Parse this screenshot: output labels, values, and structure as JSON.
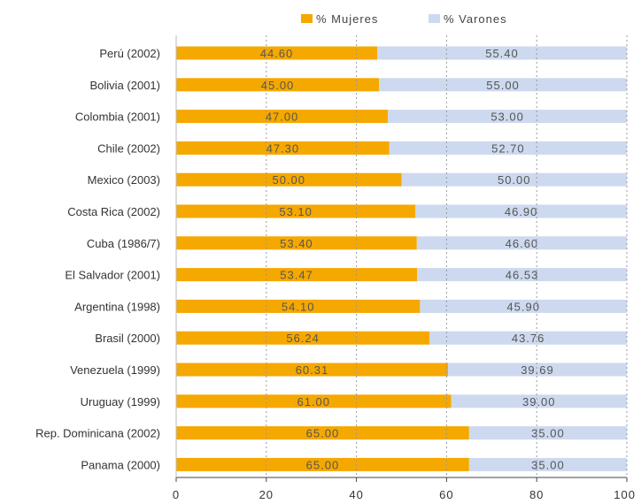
{
  "chart_data": {
    "type": "bar",
    "orientation": "horizontal",
    "stacked": true,
    "categories": [
      "Perú (2002)",
      "Bolivia (2001)",
      "Colombia (2001)",
      "Chile (2002)",
      "Mexico (2003)",
      "Costa Rica (2002)",
      "Cuba (1986/7)",
      "El Salvador (2001)",
      "Argentina (1998)",
      "Brasil (2000)",
      "Venezuela (1999)",
      "Uruguay (1999)",
      "Rep. Dominicana (2002)",
      "Panama (2000)"
    ],
    "series": [
      {
        "name": "% Mujeres",
        "color": "#f5a800",
        "values": [
          44.6,
          45.0,
          47.0,
          47.3,
          50.0,
          53.1,
          53.4,
          53.47,
          54.1,
          56.24,
          60.31,
          61.0,
          65.0,
          65.0
        ],
        "labels": [
          "44.60",
          "45.00",
          "47.00",
          "47.30",
          "50.00",
          "53.10",
          "53.40",
          "53.47",
          "54.10",
          "56.24",
          "60.31",
          "61.00",
          "65.00",
          "65.00"
        ]
      },
      {
        "name": "% Varones",
        "color": "#cdd9ee",
        "values": [
          55.4,
          55.0,
          53.0,
          52.7,
          50.0,
          46.9,
          46.6,
          46.53,
          45.9,
          43.76,
          39.69,
          39.0,
          35.0,
          35.0
        ],
        "labels": [
          "55.40",
          "55.00",
          "53.00",
          "52.70",
          "50.00",
          "46.90",
          "46.60",
          "46.53",
          "45.90",
          "43.76",
          "39.69",
          "39.00",
          "35.00",
          "35.00"
        ]
      }
    ],
    "xlim": [
      0,
      100
    ],
    "xticks": [
      0,
      20,
      40,
      60,
      80,
      100
    ],
    "xtick_labels": [
      "0",
      "20",
      "40",
      "60",
      "80",
      "100"
    ],
    "grid": "vertical dashed",
    "legend_position": "top"
  }
}
